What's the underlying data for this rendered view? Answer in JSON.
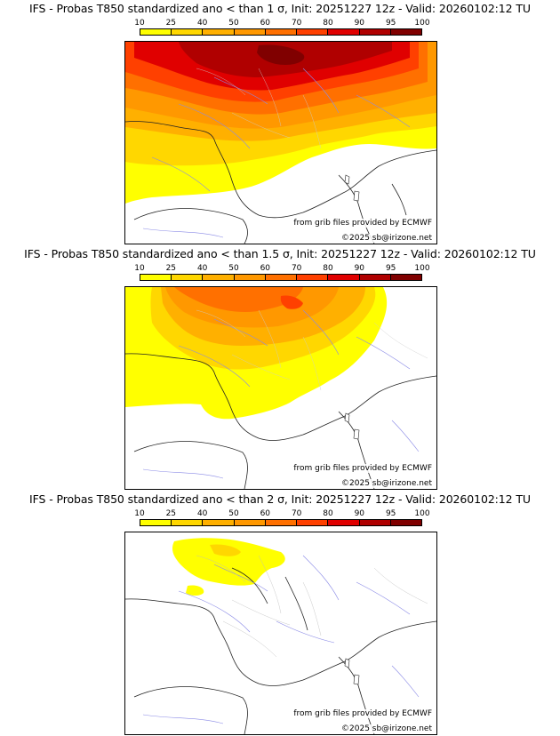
{
  "legend": {
    "ticks": [
      "10",
      "25",
      "40",
      "50",
      "60",
      "70",
      "80",
      "90",
      "95",
      "100"
    ],
    "colors": [
      "#ffff00",
      "#ffd700",
      "#ffb000",
      "#ff9800",
      "#ff7000",
      "#ff4000",
      "#e00000",
      "#b00000",
      "#800000"
    ]
  },
  "credits": {
    "source": "from grib files provided by ECMWF",
    "copyright": "©2025 sb@irizone.net"
  },
  "panels": [
    {
      "title": "IFS - Probas T850  standardized ano < than 1 σ, Init: 20251227 12z - Valid: 20260102:12 TU"
    },
    {
      "title": "IFS - Probas T850  standardized ano < than 1.5 σ, Init: 20251227 12z - Valid: 20260102:12 TU"
    },
    {
      "title": "IFS - Probas T850  standardized ano < than 2 σ, Init: 20251227 12z - Valid: 20260102:12 TU"
    }
  ]
}
